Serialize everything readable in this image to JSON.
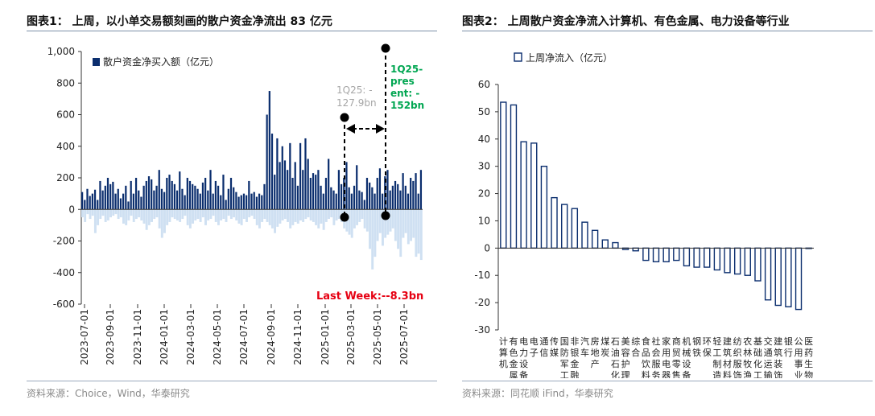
{
  "colors": {
    "navy": "#0b2e6e",
    "light": "#cfe0f2",
    "red": "#e60012",
    "green": "#00a651",
    "gray": "#a6a6a6"
  },
  "chart_data": [
    {
      "type": "bar",
      "title": "图表1： 上周，以小单交易额刻画的散户资金净流出 83 亿元",
      "legend": "散户资金净买入额（亿元）",
      "ylim": [
        -600,
        1000
      ],
      "yticks": [
        "1,000",
        "800",
        "600",
        "400",
        "200",
        "0",
        "-200",
        "-400",
        "-600"
      ],
      "xticks": [
        "2023-07-01",
        "2023-09-01",
        "2023-11-01",
        "2024-01-01",
        "2024-03-01",
        "2024-05-01",
        "2024-07-01",
        "2024-09-01",
        "2024-11-01",
        "2025-01-01",
        "2025-03-01",
        "2025-05-01",
        "2025-07-01"
      ],
      "pos_values": [
        110,
        60,
        130,
        85,
        100,
        125,
        60,
        180,
        120,
        150,
        200,
        160,
        175,
        100,
        130,
        70,
        100,
        150,
        50,
        180,
        100,
        200,
        120,
        80,
        150,
        180,
        210,
        190,
        120,
        150,
        250,
        130,
        110,
        200,
        220,
        180,
        160,
        120,
        240,
        130,
        90,
        200,
        180,
        160,
        150,
        130,
        100,
        170,
        200,
        120,
        250,
        100,
        180,
        150,
        90,
        220,
        60,
        130,
        200,
        140,
        110,
        80,
        90,
        100,
        90,
        180,
        100,
        110,
        80,
        100,
        90,
        160,
        600,
        750,
        480,
        220,
        450,
        300,
        400,
        310,
        250,
        420,
        200,
        300,
        150,
        420,
        250,
        450,
        320,
        200,
        230,
        220,
        250,
        150,
        100,
        200,
        320,
        140,
        120,
        100,
        250,
        160,
        200,
        300,
        140,
        100,
        150,
        280,
        120,
        110,
        60,
        200,
        170,
        140,
        100,
        200,
        260,
        100,
        210,
        250,
        120,
        150,
        180,
        160,
        120,
        230,
        150,
        100,
        200,
        180,
        230,
        100,
        250
      ],
      "neg_values": [
        -50,
        -80,
        -30,
        -60,
        -40,
        -150,
        -100,
        -60,
        -40,
        -80,
        -70,
        -50,
        -40,
        -30,
        -60,
        -50,
        -90,
        -100,
        -70,
        -40,
        -80,
        -60,
        -50,
        -70,
        -90,
        -130,
        -100,
        -80,
        -60,
        -50,
        -120,
        -180,
        -150,
        -100,
        -80,
        -50,
        -60,
        -70,
        -80,
        -60,
        -40,
        -100,
        -120,
        -90,
        -70,
        -60,
        -80,
        -50,
        -100,
        -70,
        -60,
        -40,
        -80,
        -100,
        -70,
        -60,
        -80,
        -40,
        -60,
        -50,
        -70,
        -90,
        -100,
        -60,
        -80,
        -50,
        -40,
        -60,
        -100,
        -120,
        -80,
        -60,
        -80,
        -100,
        -120,
        -150,
        -110,
        -90,
        -70,
        -60,
        -80,
        -120,
        -100,
        -80,
        -90,
        -70,
        -80,
        -60,
        -50,
        -70,
        -80,
        -100,
        -120,
        -90,
        -130,
        -80,
        -60,
        -50,
        -100,
        -70,
        -60,
        -80,
        -120,
        -140,
        -160,
        -180,
        -120,
        -100,
        -80,
        -60,
        -120,
        -140,
        -250,
        -380,
        -300,
        -200,
        -150,
        -230,
        -180,
        -160,
        -140,
        -120,
        -200,
        -250,
        -300,
        -180,
        -150,
        -220,
        -200,
        -180,
        -300,
        -280,
        -320
      ],
      "annotations": {
        "q1": "1Q25: -127.9bn",
        "q1_lines": [
          "1Q25: -",
          "127.9bn"
        ],
        "q2_lines": [
          "1Q25-",
          "pres",
          "ent: -",
          "152bn"
        ],
        "last_week": "Last Week:--8.3bn"
      }
    },
    {
      "type": "bar",
      "title": "图表2： 上周散户资金净流入计算机、有色金属、电力设备等行业",
      "legend": "上周净流入（亿元）",
      "ylim": [
        -30,
        60
      ],
      "yticks": [
        "60",
        "50",
        "40",
        "30",
        "20",
        "10",
        "0",
        "-10",
        "-20",
        "-30"
      ],
      "categories": [
        "计算机",
        "有色金属",
        "电力设备",
        "电子",
        "通信",
        "传媒",
        "国防军工",
        "非银金融",
        "汽车",
        "房地产",
        "煤炭",
        "石油石化",
        "美容护理",
        "综合",
        "食品饮料",
        "社会服务",
        "家用电器",
        "商贸零售",
        "机械设备",
        "钢铁",
        "环保",
        "轻工制造",
        "建筑材料",
        "纺织服饰",
        "农林牧渔",
        "基础化工",
        "交通运输",
        "建筑装饰",
        "银行",
        "公用事业",
        "医药生物"
      ],
      "values": [
        53.5,
        52.5,
        39,
        38.5,
        30,
        18.5,
        16,
        14.5,
        9.5,
        6.5,
        3,
        2,
        -0.5,
        -1,
        -4.5,
        -5,
        -5,
        -4.5,
        -6.5,
        -7,
        -7,
        -8,
        -9,
        -9.5,
        -10,
        -12,
        -19,
        -21,
        -21.5,
        -22.5,
        0
      ],
      "source": "资料来源：同花顺 iFind，华泰研究"
    }
  ],
  "source1": "资料来源：Choice，Wind，华泰研究",
  "chart1_title": "图表1： 上周，以小单交易额刻画的散户资金净流出 83 亿元",
  "chart2_title": "图表2： 上周散户资金净流入计算机、有色金属、电力设备等行业"
}
